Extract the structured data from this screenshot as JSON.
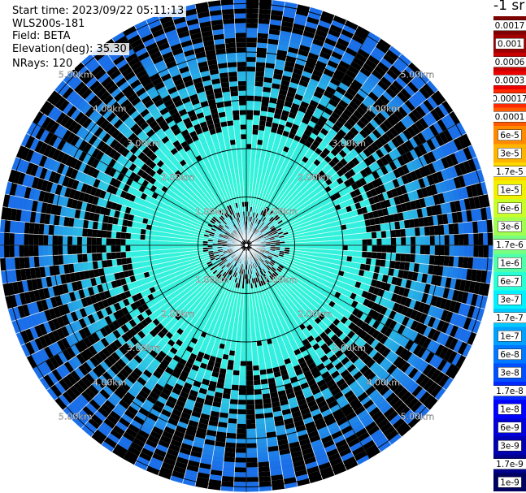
{
  "header": {
    "start_time": "Start time: 2023/09/22 05:11:13",
    "instrument": "WLS200s-181",
    "field": "Field: BETA",
    "elevation": "Elevation(deg): 35.30",
    "nrays": "NRays: 120"
  },
  "colorbar": {
    "unit": "-1 sr",
    "labels": [
      "0.0017",
      "0.001",
      "0.0006",
      "0.0003",
      "0.00017",
      "0.0001",
      "6e-5",
      "3e-5",
      "1.7e-5",
      "1e-5",
      "6e-6",
      "3e-6",
      "1.7e-6",
      "1e-6",
      "6e-7",
      "3e-7",
      "1.7e-7",
      "1e-7",
      "6e-8",
      "3e-8",
      "1.7e-8",
      "1e-8",
      "6e-9",
      "3e-9",
      "1.7e-9",
      "1e-9"
    ],
    "colors": [
      "#7f0000",
      "#a00000",
      "#c80000",
      "#ec0000",
      "#ff2a00",
      "#ff5a00",
      "#ff8a00",
      "#ffb400",
      "#ffd800",
      "#f0f000",
      "#c8ff28",
      "#a0ff50",
      "#78ff80",
      "#50ffa8",
      "#28ffd4",
      "#00f0ff",
      "#00c8ff",
      "#00a0ff",
      "#0078ff",
      "#0050ff",
      "#0028ff",
      "#0000ff",
      "#0000d8",
      "#0000b0",
      "#00008a",
      "#000060"
    ]
  },
  "chart_data": {
    "type": "heatmap",
    "projection": "polar (PPI)",
    "field": "BETA",
    "n_rays": 120,
    "elevation_deg": 35.3,
    "range_rings_km": [
      1,
      2,
      3,
      4,
      5
    ],
    "ring_labels": [
      "1.00km",
      "2.00km",
      "3.00km",
      "4.00km",
      "5.00km"
    ],
    "azimuth_spokes_deg": [
      0,
      30,
      60,
      90,
      120,
      150,
      180,
      210,
      240,
      270,
      300,
      330
    ],
    "max_range_km": 5.1,
    "value_range": [
      1e-09,
      0.0017
    ],
    "palette_stops": {
      "near_center": "#30f5d5",
      "mid_range": "#35f0e0",
      "far_range": "#1f80ea"
    }
  }
}
